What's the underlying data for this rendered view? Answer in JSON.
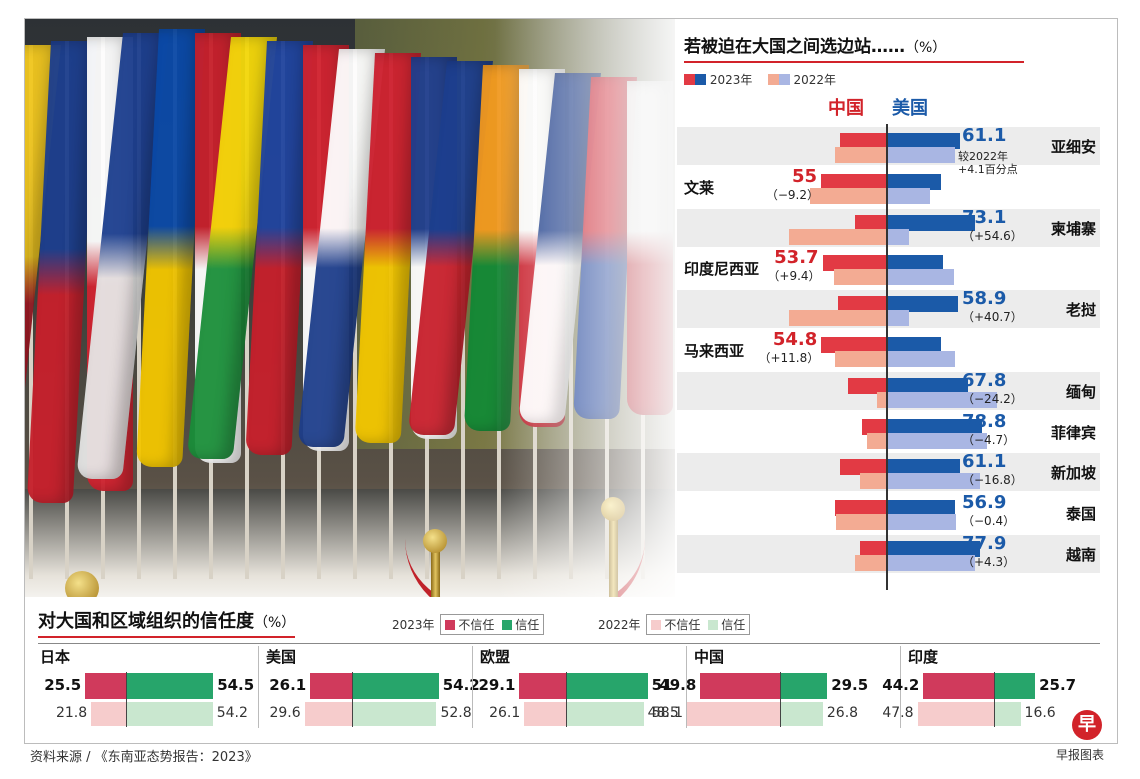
{
  "colors": {
    "cn2023": "#e23a44",
    "us2023": "#1b5aa8",
    "cn2022": "#f3ab93",
    "us2022": "#a9b6e3",
    "distrust2023": "#d03a5c",
    "trust2023": "#27a56b",
    "distrust2022": "#f6cccc",
    "trust2022": "#c9e7cf"
  },
  "side_chart": {
    "title": "若被迫在大国之间选边站……",
    "unit": "（%）",
    "legend_2023": "2023年",
    "legend_2022": "2022年",
    "header_china": "中国",
    "header_us": "美国",
    "asean_note_line1": "较2022年",
    "asean_note_line2": "+4.1百分点"
  },
  "trust_chart": {
    "title": "对大国和区域组织的信任度",
    "unit": "（%）",
    "legend_2023_year": "2023年",
    "legend_2022_year": "2022年",
    "distrust_label": "不信任",
    "trust_label": "信任"
  },
  "source": "资料来源 / 《东南亚态势报告：2023》",
  "credit": "早报图表",
  "logo_char": "早",
  "chart_data": [
    {
      "type": "bar",
      "title": "若被迫在大国之间选边站……",
      "unit": "%",
      "series_names": [
        "中国",
        "美国"
      ],
      "years": [
        "2023年",
        "2022年"
      ],
      "rows": [
        {
          "name": "亚细安",
          "winner": "us",
          "label": "61.1",
          "note": "较2022年 +4.1百分点",
          "cn2023": 38.9,
          "us2023": 61.1,
          "cn2022": 43.0,
          "us2022": 57.0
        },
        {
          "name": "文莱",
          "winner": "cn",
          "label": "55",
          "delta": "（−9.2）",
          "cn2023": 55.0,
          "us2023": 45.0,
          "cn2022": 64.2,
          "us2022": 35.8
        },
        {
          "name": "柬埔寨",
          "winner": "us",
          "label": "73.1",
          "delta": "（+54.6）",
          "cn2023": 26.9,
          "us2023": 73.1,
          "cn2022": 81.5,
          "us2022": 18.5
        },
        {
          "name": "印度尼西亚",
          "winner": "cn",
          "label": "53.7",
          "delta": "（+9.4）",
          "cn2023": 53.7,
          "us2023": 46.3,
          "cn2022": 44.3,
          "us2022": 55.7
        },
        {
          "name": "老挝",
          "winner": "us",
          "label": "58.9",
          "delta": "（+40.7）",
          "cn2023": 41.1,
          "us2023": 58.9,
          "cn2022": 81.8,
          "us2022": 18.2
        },
        {
          "name": "马来西亚",
          "winner": "cn",
          "label": "54.8",
          "delta": "（+11.8）",
          "cn2023": 54.8,
          "us2023": 45.2,
          "cn2022": 43.0,
          "us2022": 57.0
        },
        {
          "name": "缅甸",
          "winner": "us",
          "label": "67.8",
          "delta": "（−24.2）",
          "cn2023": 32.2,
          "us2023": 67.8,
          "cn2022": 8.0,
          "us2022": 92.0
        },
        {
          "name": "菲律宾",
          "winner": "us",
          "label": "78.8",
          "delta": "（−4.7）",
          "cn2023": 21.2,
          "us2023": 78.8,
          "cn2022": 16.5,
          "us2022": 83.5
        },
        {
          "name": "新加坡",
          "winner": "us",
          "label": "61.1",
          "delta": "（−16.8）",
          "cn2023": 38.9,
          "us2023": 61.1,
          "cn2022": 22.1,
          "us2022": 77.9
        },
        {
          "name": "泰国",
          "winner": "us",
          "label": "56.9",
          "delta": "（−0.4）",
          "cn2023": 43.1,
          "us2023": 56.9,
          "cn2022": 42.7,
          "us2022": 57.3
        },
        {
          "name": "越南",
          "winner": "us",
          "label": "77.9",
          "delta": "（+4.3）",
          "cn2023": 22.1,
          "us2023": 77.9,
          "cn2022": 26.4,
          "us2022": 73.6
        }
      ]
    },
    {
      "type": "bar",
      "title": "对大国和区域组织的信任度",
      "unit": "%",
      "groups": [
        {
          "name": "日本",
          "d2023": 25.5,
          "t2023": 54.5,
          "d2022": 21.8,
          "t2022": 54.2
        },
        {
          "name": "美国",
          "d2023": 26.1,
          "t2023": 54.2,
          "d2022": 29.6,
          "t2022": 52.8
        },
        {
          "name": "欧盟",
          "d2023": 29.1,
          "t2023": 51,
          "d2022": 26.1,
          "t2022": 48.5
        },
        {
          "name": "中国",
          "d2023": 49.8,
          "t2023": 29.5,
          "d2022": 58.1,
          "t2022": 26.8
        },
        {
          "name": "印度",
          "d2023": 44.2,
          "t2023": 25.7,
          "d2022": 47.8,
          "t2022": 16.6
        }
      ]
    }
  ]
}
